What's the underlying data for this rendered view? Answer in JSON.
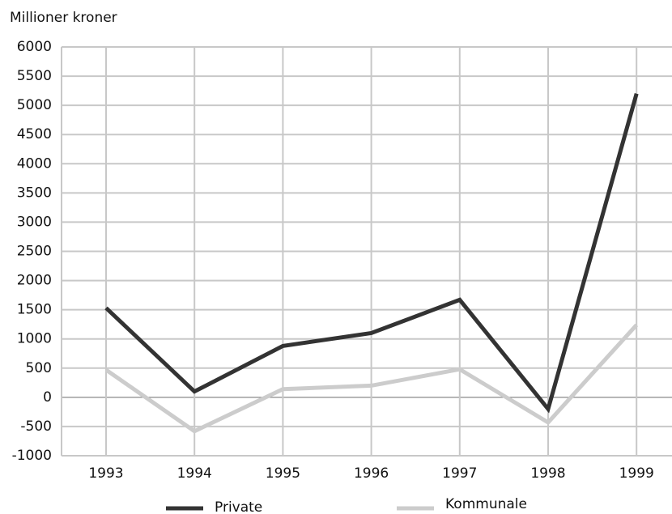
{
  "chart_data": {
    "type": "line",
    "y_axis_label": "Millioner kroner",
    "categories": [
      "1993",
      "1994",
      "1995",
      "1996",
      "1997",
      "1998",
      "1999"
    ],
    "series": [
      {
        "name": "Private",
        "color": "#333333",
        "values": [
          1530,
          100,
          880,
          1100,
          1670,
          -200,
          5200
        ]
      },
      {
        "name": "Kommunale",
        "color": "#cccccc",
        "values": [
          470,
          -580,
          140,
          200,
          480,
          -430,
          1240
        ]
      }
    ],
    "ylim": [
      -1000,
      6000
    ],
    "yticks": [
      -1000,
      -500,
      0,
      500,
      1000,
      1500,
      2000,
      2500,
      3000,
      3500,
      4000,
      4500,
      5000,
      5500,
      6000
    ],
    "grid": true,
    "legend": "bottom"
  }
}
